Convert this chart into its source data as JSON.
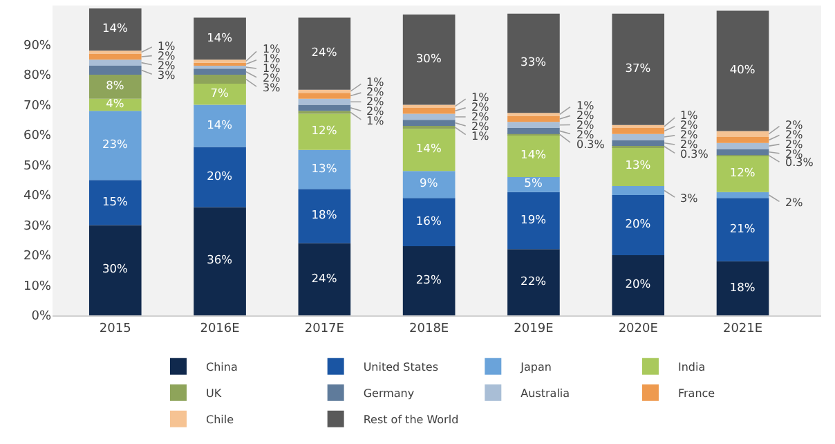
{
  "chart_data": {
    "type": "bar",
    "stacked": true,
    "categories": [
      "2015",
      "2016E",
      "2017E",
      "2018E",
      "2019E",
      "2020E",
      "2021E"
    ],
    "series": [
      {
        "name": "China",
        "color": "#10294d",
        "values": [
          30,
          36,
          24,
          23,
          22,
          20,
          18
        ],
        "value_labels": [
          "30%",
          "36%",
          "24%",
          "23%",
          "22%",
          "20%",
          "18%"
        ]
      },
      {
        "name": "United States",
        "color": "#1a55a3",
        "values": [
          15,
          20,
          18,
          16,
          19,
          20,
          21
        ],
        "value_labels": [
          "15%",
          "20%",
          "18%",
          "16%",
          "19%",
          "20%",
          "21%"
        ]
      },
      {
        "name": "Japan",
        "color": "#6aa3da",
        "values": [
          23,
          14,
          13,
          9,
          5,
          3,
          2
        ],
        "value_labels": [
          "23%",
          "14%",
          "13%",
          "9%",
          "5%",
          "3%",
          "2%"
        ]
      },
      {
        "name": "India",
        "color": "#a9c95c",
        "values": [
          4,
          7,
          12,
          14,
          14,
          13,
          12
        ],
        "value_labels": [
          "4%",
          "7%",
          "12%",
          "14%",
          "14%",
          "13%",
          "12%"
        ]
      },
      {
        "name": "UK",
        "color": "#8ea45a",
        "values": [
          8,
          3,
          1,
          1,
          0.3,
          0.3,
          0.3
        ],
        "value_labels": [
          "8%",
          "3%",
          "1%",
          "1%",
          "0.3%",
          "0.3%",
          "0.3%"
        ]
      },
      {
        "name": "Germany",
        "color": "#5f7b9b",
        "values": [
          3,
          2,
          2,
          2,
          2,
          2,
          2
        ],
        "value_labels": [
          "3%",
          "2%",
          "2%",
          "2%",
          "2%",
          "2%",
          "2%"
        ]
      },
      {
        "name": "Australia",
        "color": "#a9bed6",
        "values": [
          2,
          1,
          2,
          2,
          2,
          2,
          2
        ],
        "value_labels": [
          "2%",
          "1%",
          "2%",
          "2%",
          "2%",
          "2%",
          "2%"
        ]
      },
      {
        "name": "France",
        "color": "#ee9a4f",
        "values": [
          2,
          1,
          2,
          2,
          2,
          2,
          2
        ],
        "value_labels": [
          "2%",
          "1%",
          "2%",
          "2%",
          "2%",
          "2%",
          "2%"
        ]
      },
      {
        "name": "Chile",
        "color": "#f6c393",
        "values": [
          1,
          1,
          1,
          1,
          1,
          1,
          2
        ],
        "value_labels": [
          "1%",
          "1%",
          "1%",
          "1%",
          "1%",
          "1%",
          "2%"
        ]
      },
      {
        "name": "Rest of the World",
        "color": "#595959",
        "values": [
          14,
          14,
          24,
          30,
          33,
          37,
          40
        ],
        "value_labels": [
          "14%",
          "14%",
          "24%",
          "30%",
          "33%",
          "37%",
          "40%"
        ]
      }
    ],
    "ylim": [
      0,
      103
    ],
    "yticks": [
      {
        "value": 0,
        "label": "0%"
      },
      {
        "value": 10,
        "label": "10%"
      },
      {
        "value": 20,
        "label": "20%"
      },
      {
        "value": 30,
        "label": "30%"
      },
      {
        "value": 40,
        "label": "40%"
      },
      {
        "value": 50,
        "label": "50%"
      },
      {
        "value": 60,
        "label": "60%"
      },
      {
        "value": 70,
        "label": "70%"
      },
      {
        "value": 80,
        "label": "80%"
      },
      {
        "value": 90,
        "label": "90%"
      }
    ],
    "grid": false,
    "legend": "bottom"
  }
}
